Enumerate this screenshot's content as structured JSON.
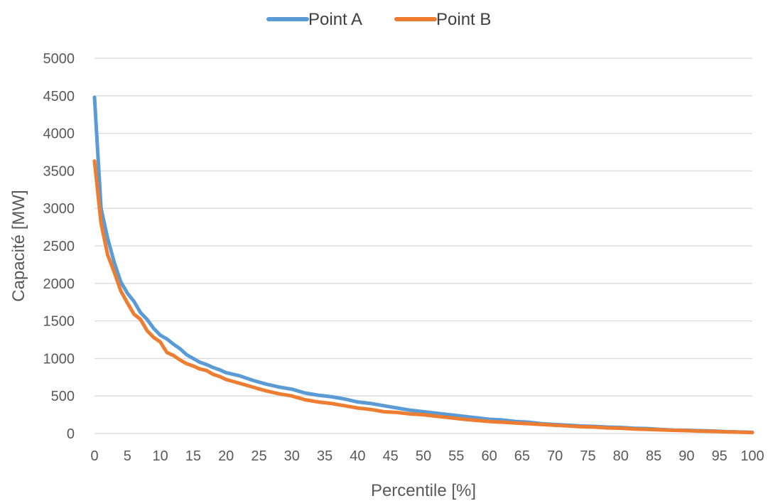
{
  "chart_data": {
    "type": "line",
    "title": "",
    "xlabel": "Percentile [%]",
    "ylabel": "Capacité [MW]",
    "xlim": [
      0,
      100
    ],
    "ylim": [
      0,
      5000
    ],
    "x_ticks": [
      0,
      5,
      10,
      15,
      20,
      25,
      30,
      35,
      40,
      45,
      50,
      55,
      60,
      65,
      70,
      75,
      80,
      85,
      90,
      95,
      100
    ],
    "y_ticks": [
      0,
      500,
      1000,
      1500,
      2000,
      2500,
      3000,
      3500,
      4000,
      4500,
      5000
    ],
    "grid": "horizontal",
    "legend_position": "top-center",
    "series": [
      {
        "name": "Point A",
        "color": "#5b9bd5",
        "x": [
          0,
          1,
          2,
          3,
          4,
          5,
          6,
          7,
          8,
          9,
          10,
          11,
          12,
          13,
          14,
          15,
          16,
          17,
          18,
          19,
          20,
          22,
          24,
          26,
          28,
          30,
          32,
          34,
          36,
          38,
          40,
          42,
          44,
          46,
          48,
          50,
          52,
          54,
          56,
          58,
          60,
          62,
          64,
          66,
          68,
          70,
          72,
          74,
          76,
          78,
          80,
          82,
          84,
          86,
          88,
          90,
          92,
          94,
          96,
          98,
          100
        ],
        "values": [
          4480,
          3000,
          2600,
          2280,
          2020,
          1870,
          1760,
          1610,
          1520,
          1400,
          1310,
          1260,
          1190,
          1130,
          1050,
          1000,
          950,
          920,
          880,
          850,
          810,
          770,
          710,
          660,
          620,
          590,
          540,
          510,
          490,
          460,
          420,
          400,
          370,
          340,
          310,
          290,
          270,
          250,
          230,
          210,
          190,
          180,
          160,
          150,
          130,
          120,
          110,
          100,
          95,
          85,
          80,
          70,
          65,
          55,
          45,
          42,
          38,
          33,
          25,
          20,
          15
        ]
      },
      {
        "name": "Point B",
        "color": "#ed7d31",
        "x": [
          0,
          1,
          2,
          3,
          4,
          5,
          6,
          7,
          8,
          9,
          10,
          11,
          12,
          13,
          14,
          15,
          16,
          17,
          18,
          19,
          20,
          22,
          24,
          26,
          28,
          30,
          32,
          34,
          36,
          38,
          40,
          42,
          44,
          46,
          48,
          50,
          52,
          54,
          56,
          58,
          60,
          62,
          64,
          66,
          68,
          70,
          72,
          74,
          76,
          78,
          80,
          82,
          84,
          86,
          88,
          90,
          92,
          94,
          96,
          98,
          100
        ],
        "values": [
          3630,
          2800,
          2380,
          2150,
          1900,
          1740,
          1590,
          1520,
          1370,
          1280,
          1220,
          1080,
          1040,
          980,
          930,
          900,
          860,
          840,
          790,
          760,
          720,
          670,
          620,
          570,
          530,
          500,
          450,
          420,
          400,
          370,
          340,
          320,
          290,
          280,
          260,
          250,
          230,
          210,
          190,
          175,
          160,
          150,
          140,
          130,
          120,
          110,
          100,
          90,
          85,
          75,
          70,
          60,
          55,
          48,
          42,
          38,
          32,
          28,
          22,
          18,
          12
        ]
      }
    ]
  }
}
